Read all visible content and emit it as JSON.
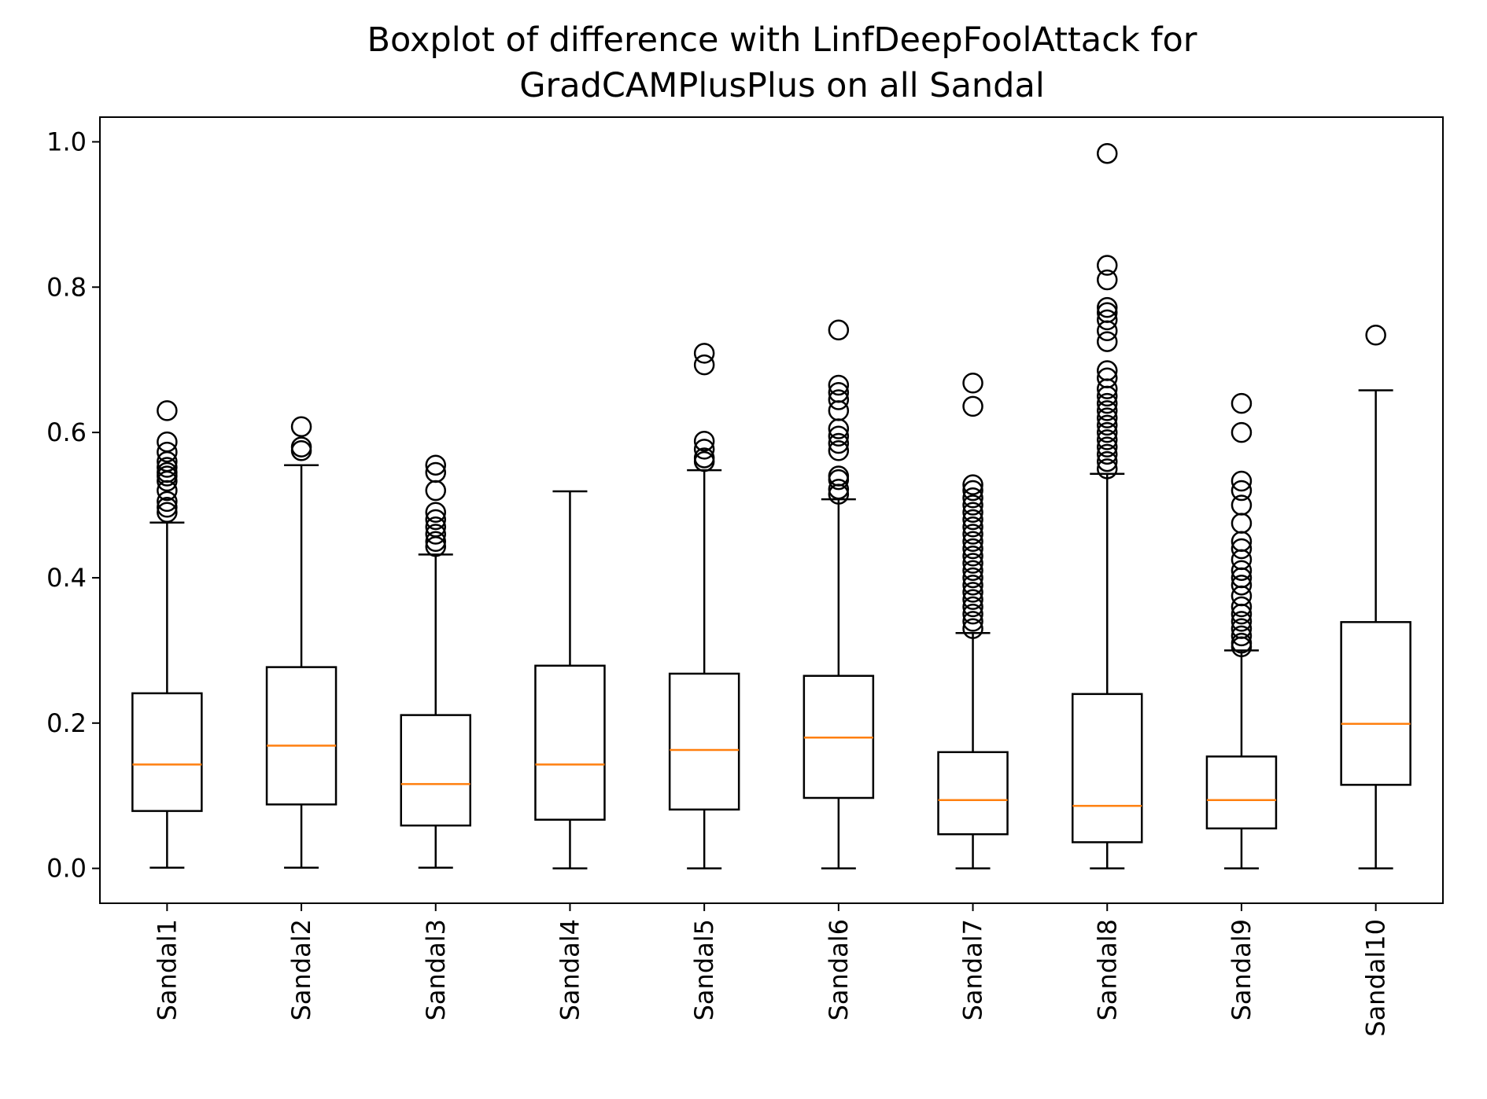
{
  "chart_data": {
    "type": "boxplot",
    "title_lines": [
      "Boxplot of difference with LinfDeepFoolAttack for",
      "GradCAMPlusPlus on all Sandal"
    ],
    "xlabel": "",
    "ylabel": "",
    "ylim": [
      -0.048,
      1.034
    ],
    "yticks": [
      0.0,
      0.2,
      0.4,
      0.6,
      0.8,
      1.0
    ],
    "ytick_labels": [
      "0.0",
      "0.2",
      "0.4",
      "0.6",
      "0.8",
      "1.0"
    ],
    "grid": false,
    "colors": {
      "box": "#000000",
      "median": "#ff7f0e",
      "background": "#ffffff"
    },
    "categories": [
      "Sandal1",
      "Sandal2",
      "Sandal3",
      "Sandal4",
      "Sandal5",
      "Sandal6",
      "Sandal7",
      "Sandal8",
      "Sandal9",
      "Sandal10"
    ],
    "boxes": [
      {
        "label": "Sandal1",
        "whisker_low": 0.001,
        "q1": 0.079,
        "median": 0.143,
        "q3": 0.241,
        "whisker_high": 0.476,
        "fliers": [
          0.49,
          0.497,
          0.505,
          0.52,
          0.533,
          0.54,
          0.545,
          0.552,
          0.56,
          0.573,
          0.587,
          0.63
        ]
      },
      {
        "label": "Sandal2",
        "whisker_low": 0.001,
        "q1": 0.088,
        "median": 0.169,
        "q3": 0.277,
        "whisker_high": 0.555,
        "fliers": [
          0.575,
          0.58,
          0.608
        ]
      },
      {
        "label": "Sandal3",
        "whisker_low": 0.001,
        "q1": 0.059,
        "median": 0.116,
        "q3": 0.211,
        "whisker_high": 0.432,
        "fliers": [
          0.443,
          0.45,
          0.46,
          0.47,
          0.48,
          0.49,
          0.52,
          0.545,
          0.555
        ]
      },
      {
        "label": "Sandal4",
        "whisker_low": 0.0,
        "q1": 0.067,
        "median": 0.143,
        "q3": 0.279,
        "whisker_high": 0.519,
        "fliers": []
      },
      {
        "label": "Sandal5",
        "whisker_low": 0.0,
        "q1": 0.081,
        "median": 0.163,
        "q3": 0.268,
        "whisker_high": 0.548,
        "fliers": [
          0.56,
          0.565,
          0.577,
          0.588,
          0.693,
          0.709
        ]
      },
      {
        "label": "Sandal6",
        "whisker_low": 0.0,
        "q1": 0.097,
        "median": 0.18,
        "q3": 0.265,
        "whisker_high": 0.508,
        "fliers": [
          0.515,
          0.522,
          0.535,
          0.54,
          0.575,
          0.585,
          0.595,
          0.605,
          0.63,
          0.645,
          0.655,
          0.665,
          0.741
        ]
      },
      {
        "label": "Sandal7",
        "whisker_low": 0.0,
        "q1": 0.047,
        "median": 0.094,
        "q3": 0.16,
        "whisker_high": 0.324,
        "fliers": [
          0.33,
          0.34,
          0.35,
          0.36,
          0.37,
          0.38,
          0.39,
          0.4,
          0.41,
          0.42,
          0.43,
          0.44,
          0.45,
          0.46,
          0.47,
          0.48,
          0.49,
          0.5,
          0.51,
          0.52,
          0.528,
          0.636,
          0.668
        ]
      },
      {
        "label": "Sandal8",
        "whisker_low": 0.0,
        "q1": 0.036,
        "median": 0.086,
        "q3": 0.24,
        "whisker_high": 0.543,
        "fliers": [
          0.55,
          0.56,
          0.57,
          0.58,
          0.59,
          0.6,
          0.61,
          0.62,
          0.63,
          0.64,
          0.65,
          0.66,
          0.675,
          0.685,
          0.725,
          0.74,
          0.755,
          0.765,
          0.772,
          0.81,
          0.83,
          0.984
        ]
      },
      {
        "label": "Sandal9",
        "whisker_low": 0.0,
        "q1": 0.055,
        "median": 0.094,
        "q3": 0.154,
        "whisker_high": 0.3,
        "fliers": [
          0.305,
          0.31,
          0.32,
          0.33,
          0.34,
          0.35,
          0.36,
          0.375,
          0.39,
          0.4,
          0.41,
          0.425,
          0.44,
          0.45,
          0.475,
          0.5,
          0.52,
          0.533,
          0.6,
          0.64
        ]
      },
      {
        "label": "Sandal10",
        "whisker_low": 0.0,
        "q1": 0.115,
        "median": 0.199,
        "q3": 0.339,
        "whisker_high": 0.658,
        "fliers": [
          0.734
        ]
      }
    ]
  }
}
